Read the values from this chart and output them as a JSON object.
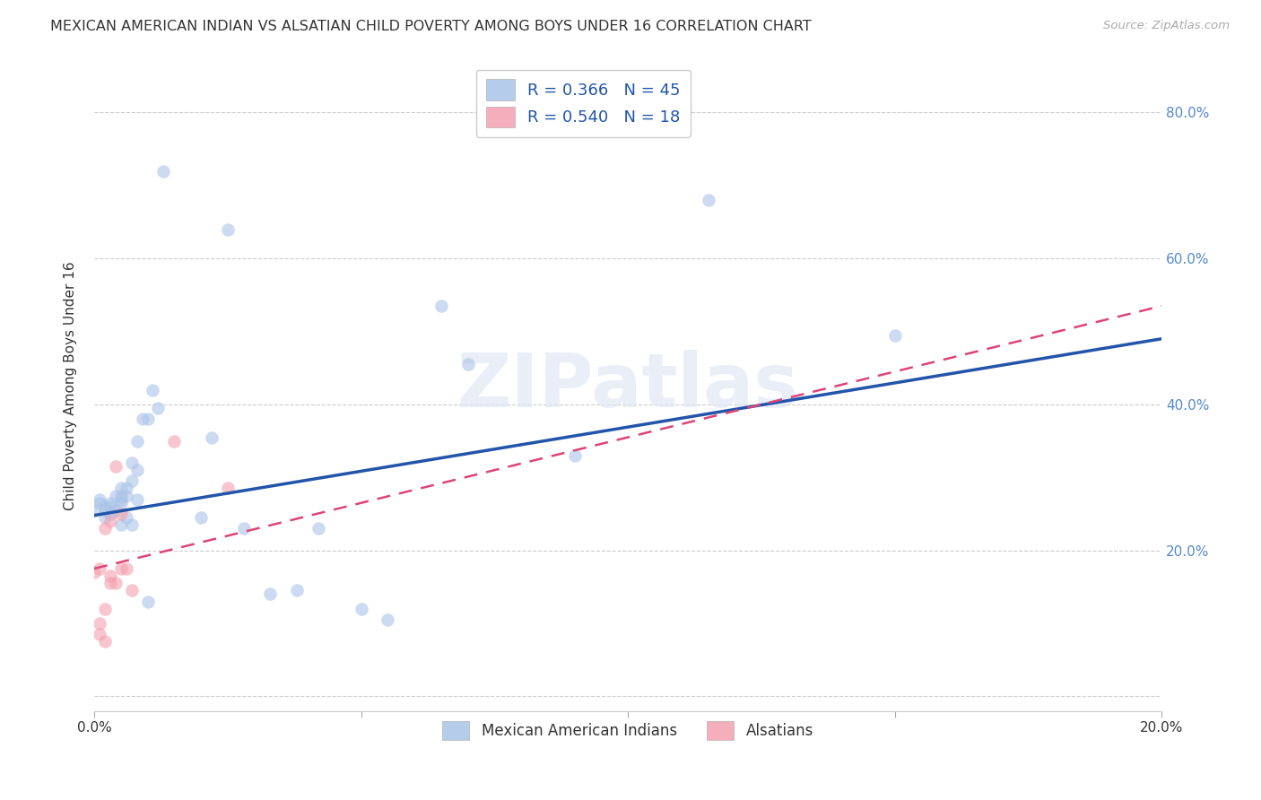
{
  "title": "MEXICAN AMERICAN INDIAN VS ALSATIAN CHILD POVERTY AMONG BOYS UNDER 16 CORRELATION CHART",
  "source": "Source: ZipAtlas.com",
  "ylabel": "Child Poverty Among Boys Under 16",
  "legend_entries": [
    {
      "label": "R = 0.366   N = 45",
      "color": "#aac4e8"
    },
    {
      "label": "R = 0.540   N = 18",
      "color": "#f4a0b0"
    }
  ],
  "legend_labels_bottom": [
    "Mexican American Indians",
    "Alsatians"
  ],
  "xlim": [
    0.0,
    0.2
  ],
  "ylim": [
    -0.02,
    0.87
  ],
  "yticks": [
    0.0,
    0.2,
    0.4,
    0.6,
    0.8
  ],
  "xticks": [
    0.0,
    0.05,
    0.1,
    0.15,
    0.2
  ],
  "xtick_labels": [
    "0.0%",
    "",
    "",
    "",
    "20.0%"
  ],
  "ytick_labels_right": [
    "",
    "20.0%",
    "40.0%",
    "60.0%",
    "80.0%"
  ],
  "blue_scatter_x": [
    0.0,
    0.001,
    0.001,
    0.002,
    0.002,
    0.002,
    0.003,
    0.003,
    0.003,
    0.004,
    0.004,
    0.005,
    0.005,
    0.005,
    0.005,
    0.005,
    0.006,
    0.006,
    0.006,
    0.007,
    0.007,
    0.007,
    0.008,
    0.008,
    0.008,
    0.009,
    0.01,
    0.01,
    0.011,
    0.012,
    0.013,
    0.02,
    0.022,
    0.025,
    0.028,
    0.033,
    0.038,
    0.042,
    0.05,
    0.055,
    0.065,
    0.07,
    0.09,
    0.115,
    0.15
  ],
  "blue_scatter_y": [
    0.255,
    0.265,
    0.27,
    0.245,
    0.26,
    0.255,
    0.265,
    0.26,
    0.25,
    0.275,
    0.255,
    0.285,
    0.275,
    0.265,
    0.27,
    0.235,
    0.245,
    0.285,
    0.275,
    0.295,
    0.32,
    0.235,
    0.27,
    0.31,
    0.35,
    0.38,
    0.13,
    0.38,
    0.42,
    0.395,
    0.72,
    0.245,
    0.355,
    0.64,
    0.23,
    0.14,
    0.145,
    0.23,
    0.12,
    0.105,
    0.535,
    0.455,
    0.33,
    0.68,
    0.495
  ],
  "pink_scatter_x": [
    0.0,
    0.001,
    0.001,
    0.001,
    0.002,
    0.002,
    0.002,
    0.003,
    0.003,
    0.003,
    0.004,
    0.004,
    0.005,
    0.005,
    0.006,
    0.007,
    0.015,
    0.025
  ],
  "pink_scatter_y": [
    0.17,
    0.085,
    0.1,
    0.175,
    0.12,
    0.075,
    0.23,
    0.24,
    0.165,
    0.155,
    0.155,
    0.315,
    0.25,
    0.175,
    0.175,
    0.145,
    0.35,
    0.285
  ],
  "blue_line_x": [
    0.0,
    0.2
  ],
  "blue_line_y": [
    0.248,
    0.49
  ],
  "pink_line_x": [
    0.0,
    0.2
  ],
  "pink_line_y": [
    0.175,
    0.535
  ],
  "watermark_text": "ZIPatlas",
  "background_color": "#ffffff",
  "scatter_alpha": 0.6,
  "scatter_size": 110,
  "blue_color": "#aac4e8",
  "pink_color": "#f4a0b0",
  "blue_line_color": "#2255aa",
  "pink_line_color": "#dd4477",
  "grid_color": "#cccccc",
  "title_fontsize": 11.5,
  "axis_label_fontsize": 11,
  "tick_fontsize": 11,
  "right_tick_color": "#5588cc",
  "watermark_fontsize": 60
}
